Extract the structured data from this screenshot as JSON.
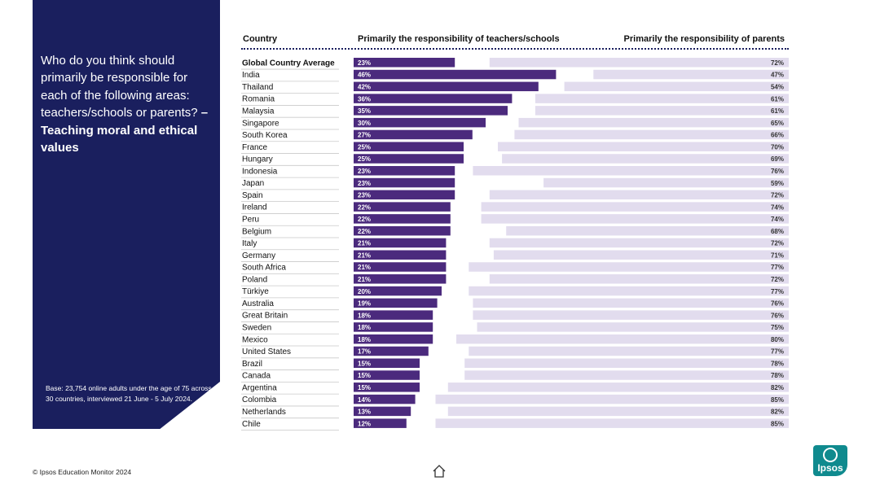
{
  "question": {
    "text": "Who do you think should primarily be responsible for each of the following areas: teachers/schools or parents?",
    "bold": "– Teaching moral and ethical values"
  },
  "base_note": "Base: 23,754 online adults under the age of 75 across 30 countries, interviewed 21 June - 5 July 2024.",
  "footer": "© Ipsos Education Monitor 2024",
  "logo_text": "Ipsos",
  "colors": {
    "panel": "#1a1f5e",
    "teachers": "#4b2a7d",
    "parents": "#e2dcee"
  },
  "chart_data": {
    "type": "bar",
    "headers": {
      "country": "Country",
      "teachers": "Primarily the responsibility of teachers/schools",
      "parents": "Primarily the responsibility of parents"
    },
    "categories": [
      "Global Country Average",
      "India",
      "Thailand",
      "Romania",
      "Malaysia",
      "Singapore",
      "South Korea",
      "France",
      "Hungary",
      "Indonesia",
      "Japan",
      "Spain",
      "Ireland",
      "Peru",
      "Belgium",
      "Italy",
      "Germany",
      "South Africa",
      "Poland",
      "Türkiye",
      "Australia",
      "Great Britain",
      "Sweden",
      "Mexico",
      "United States",
      "Brazil",
      "Canada",
      "Argentina",
      "Colombia",
      "Netherlands",
      "Chile"
    ],
    "series": [
      {
        "name": "Primarily the responsibility of teachers/schools",
        "values": [
          23,
          46,
          42,
          36,
          35,
          30,
          27,
          25,
          25,
          23,
          23,
          23,
          22,
          22,
          22,
          21,
          21,
          21,
          21,
          20,
          19,
          18,
          18,
          18,
          17,
          15,
          15,
          15,
          14,
          13,
          12
        ]
      },
      {
        "name": "Primarily the responsibility of parents",
        "values": [
          72,
          47,
          54,
          61,
          61,
          65,
          66,
          70,
          69,
          76,
          59,
          72,
          74,
          74,
          68,
          72,
          71,
          77,
          72,
          77,
          76,
          76,
          75,
          80,
          77,
          78,
          78,
          82,
          85,
          82,
          85
        ]
      }
    ],
    "unit": "%"
  }
}
